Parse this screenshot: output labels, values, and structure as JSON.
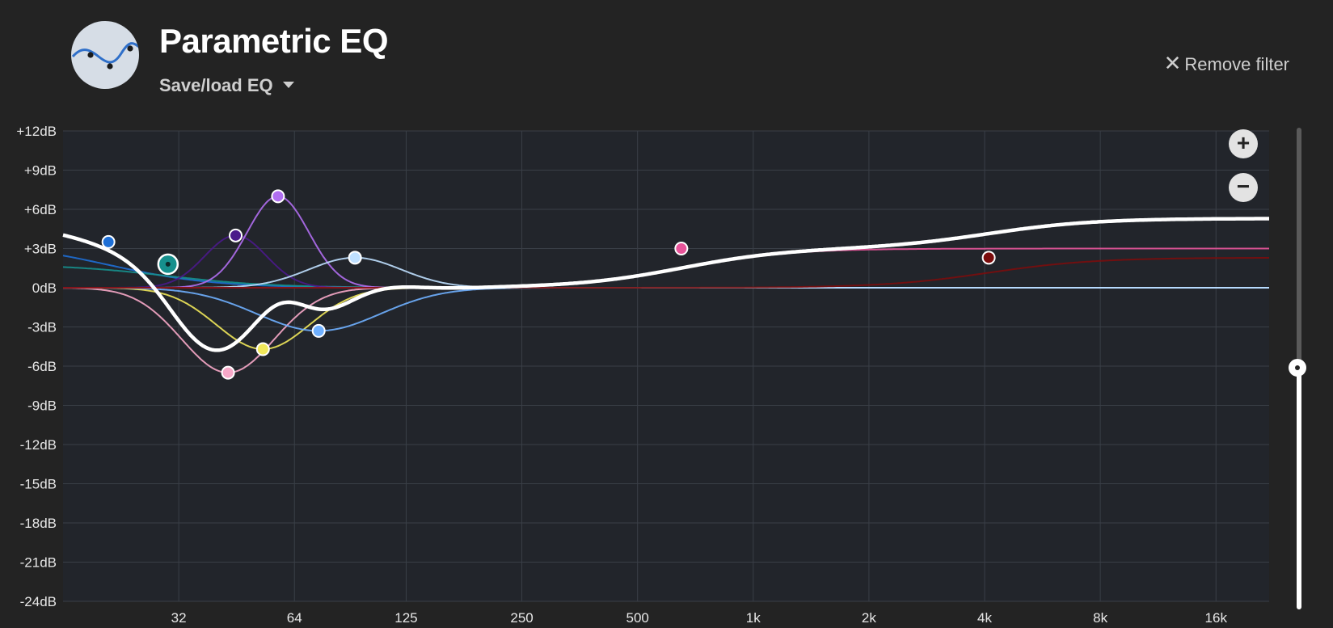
{
  "header": {
    "title": "Parametric EQ",
    "save_load_label": "Save/load EQ",
    "remove_filter_label": "Remove filter",
    "remove_icon": "close-icon",
    "app_icon": "eq-curve-icon"
  },
  "zoom": {
    "in_label": "+",
    "out_label": "−"
  },
  "colors": {
    "background": "#232323",
    "plot_background": "#22252b",
    "grid": "#3a3f47",
    "total_curve": "#ffffff"
  },
  "chart_data": {
    "type": "line",
    "x_scale": "log",
    "xlim": [
      16,
      22000
    ],
    "ylim": [
      -24,
      12
    ],
    "x_ticks": [
      {
        "value": 32,
        "label": "32"
      },
      {
        "value": 64,
        "label": "64"
      },
      {
        "value": 125,
        "label": "125"
      },
      {
        "value": 250,
        "label": "250"
      },
      {
        "value": 500,
        "label": "500"
      },
      {
        "value": 1000,
        "label": "1k"
      },
      {
        "value": 2000,
        "label": "2k"
      },
      {
        "value": 4000,
        "label": "4k"
      },
      {
        "value": 8000,
        "label": "8k"
      },
      {
        "value": 16000,
        "label": "16k"
      }
    ],
    "y_ticks": [
      {
        "value": 12,
        "label": "+12dB"
      },
      {
        "value": 9,
        "label": "+9dB"
      },
      {
        "value": 6,
        "label": "+6dB"
      },
      {
        "value": 3,
        "label": "+3dB"
      },
      {
        "value": 0,
        "label": "0dB"
      },
      {
        "value": -3,
        "label": "-3dB"
      },
      {
        "value": -6,
        "label": "-6dB"
      },
      {
        "value": -9,
        "label": "-9dB"
      },
      {
        "value": -12,
        "label": "-12dB"
      },
      {
        "value": -15,
        "label": "-15dB"
      },
      {
        "value": -18,
        "label": "-18dB"
      },
      {
        "value": -21,
        "label": "-21dB"
      },
      {
        "value": -24,
        "label": "-24dB"
      }
    ],
    "grid": true,
    "filters": [
      {
        "type": "lowshelf",
        "freq": 21,
        "gain": 3.5,
        "q": 0.7,
        "color": "#1e6fd6"
      },
      {
        "type": "lowshelf",
        "freq": 30,
        "gain": 1.8,
        "q": 0.7,
        "color": "#16908d",
        "selected": true
      },
      {
        "type": "peak",
        "freq": 43,
        "gain": -6.5,
        "q": 4,
        "color": "#f7a8c8"
      },
      {
        "type": "peak",
        "freq": 45,
        "gain": 4.0,
        "q": 6,
        "color": "#4a1a8a"
      },
      {
        "type": "peak",
        "freq": 53,
        "gain": -4.7,
        "q": 4,
        "color": "#f1e85a"
      },
      {
        "type": "peak",
        "freq": 58,
        "gain": 7.0,
        "q": 6,
        "color": "#b06ef0"
      },
      {
        "type": "peak",
        "freq": 74,
        "gain": -3.3,
        "q": 3,
        "color": "#6fb0ff"
      },
      {
        "type": "peak",
        "freq": 92,
        "gain": 2.3,
        "q": 4,
        "color": "#bfe0ff"
      },
      {
        "type": "highshelf",
        "freq": 650,
        "gain": 3.0,
        "q": 0.7,
        "color": "#e8549a"
      },
      {
        "type": "highshelf",
        "freq": 4100,
        "gain": 2.3,
        "q": 0.7,
        "color": "#7a0d0d"
      }
    ],
    "total_curve_color": "#ffffff"
  }
}
